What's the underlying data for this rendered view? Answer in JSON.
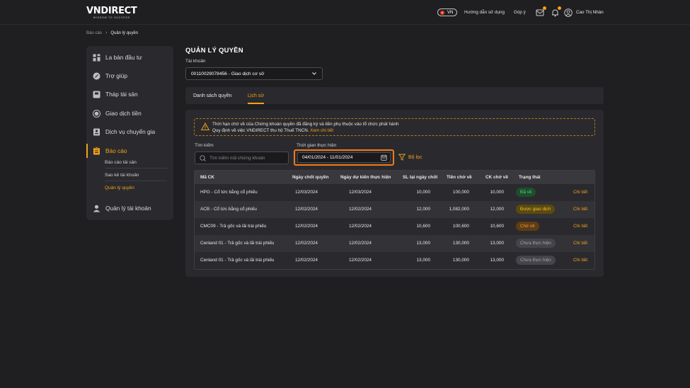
{
  "header": {
    "logo_main": "VNDIRECT",
    "logo_sub": "WISDOM TO SUCCESS",
    "lang": "VN",
    "guide_label": "Hướng dẫn sử dụng",
    "feedback_label": "Góp ý",
    "user_name": "Cao Thị Nhàn",
    "accent": "#f0a21b"
  },
  "breadcrumb": {
    "parent": "Báo cáo",
    "current": "Quản lý quyền"
  },
  "sidebar": {
    "items": [
      {
        "label": "La bàn đầu tư",
        "icon": "dashboard-icon"
      },
      {
        "label": "Trợ giúp",
        "icon": "help-icon"
      },
      {
        "label": "Tháp tài sản",
        "icon": "asset-tower-icon"
      },
      {
        "label": "Giao dịch tiền",
        "icon": "money-transaction-icon"
      },
      {
        "label": "Dịch vụ chuyển gia",
        "icon": "expert-service-icon"
      },
      {
        "label": "Báo cáo",
        "icon": "report-icon"
      },
      {
        "label": "Quản lý tài khoản",
        "icon": "account-icon"
      }
    ],
    "sub_items": [
      {
        "label": "Báo cáo tài sản"
      },
      {
        "label": "Sao kê tài khoản"
      },
      {
        "label": "Quản lý quyền"
      }
    ]
  },
  "main": {
    "title": "QUẢN LÝ QUYỀN",
    "account_label": "Tài khoản",
    "account_value": "00110029078456 - Giao dịch cơ sở",
    "tabs": [
      {
        "label": "Danh sách quyền"
      },
      {
        "label": "Lịch sử"
      }
    ],
    "notice_line1": "Thời hạn chờ về của Chứng khoán quyền đã đăng ký và tiền phụ thuộc vào tổ chức phát hành",
    "notice_line2": "Quy định về việc VNDIRECT thu hộ Thuế TNCN.",
    "notice_link": "Xem chi tiết",
    "search_label": "Tìm kiếm",
    "search_placeholder": "Tìm kiếm mã chứng khoán",
    "date_label": "Thời gian thực hiện",
    "date_value": "04/01/2024 - 11/01/2024",
    "filter_label": "Bộ lọc"
  },
  "table": {
    "headers": [
      "Mã CK",
      "Ngày chốt quyền",
      "Ngày dự kiến thực hiện",
      "SL tại ngày chốt",
      "Tiền chờ về",
      "CK chờ về",
      "Trạng thái"
    ],
    "rows": [
      {
        "code": "HPG - Cổ tức bằng cổ phiếu",
        "record_date": "12/03/2024",
        "exec_date": "12/03/2024",
        "qty": "10,000",
        "cash": "100,000",
        "stock": "10,000",
        "status": "Đã về",
        "status_kind": "green",
        "action": "Chi tiết"
      },
      {
        "code": "ACB - Cổ tức bằng cổ phiếu",
        "record_date": "12/02/2024",
        "exec_date": "12/02/2024",
        "qty": "12,000",
        "cash": "1,082,000",
        "stock": "12,000",
        "status": "Được giao dịch",
        "status_kind": "yellow",
        "action": "Chi tiết"
      },
      {
        "code": "CMC09 - Trả gốc và lãi trái phiếu",
        "record_date": "12/02/2024",
        "exec_date": "12/02/2024",
        "qty": "10,600",
        "cash": "100,600",
        "stock": "10,600",
        "status": "Chờ về",
        "status_kind": "orange",
        "action": "Chi tiết"
      },
      {
        "code": "Cenland 01 - Trả gốc và lãi trái phiếu",
        "record_date": "12/02/2024",
        "exec_date": "12/02/2024",
        "qty": "13,000",
        "cash": "130,000",
        "stock": "13,000",
        "status": "Chưa thực hiện",
        "status_kind": "gray",
        "action": "Chi tiết"
      },
      {
        "code": "Cenland 01 - Trả gốc và lãi trái phiếu",
        "record_date": "12/02/2024",
        "exec_date": "12/02/2024",
        "qty": "13,000",
        "cash": "130,000",
        "stock": "13,000",
        "status": "Chưa thực hiện",
        "status_kind": "gray",
        "action": "Chi tiết"
      }
    ]
  }
}
